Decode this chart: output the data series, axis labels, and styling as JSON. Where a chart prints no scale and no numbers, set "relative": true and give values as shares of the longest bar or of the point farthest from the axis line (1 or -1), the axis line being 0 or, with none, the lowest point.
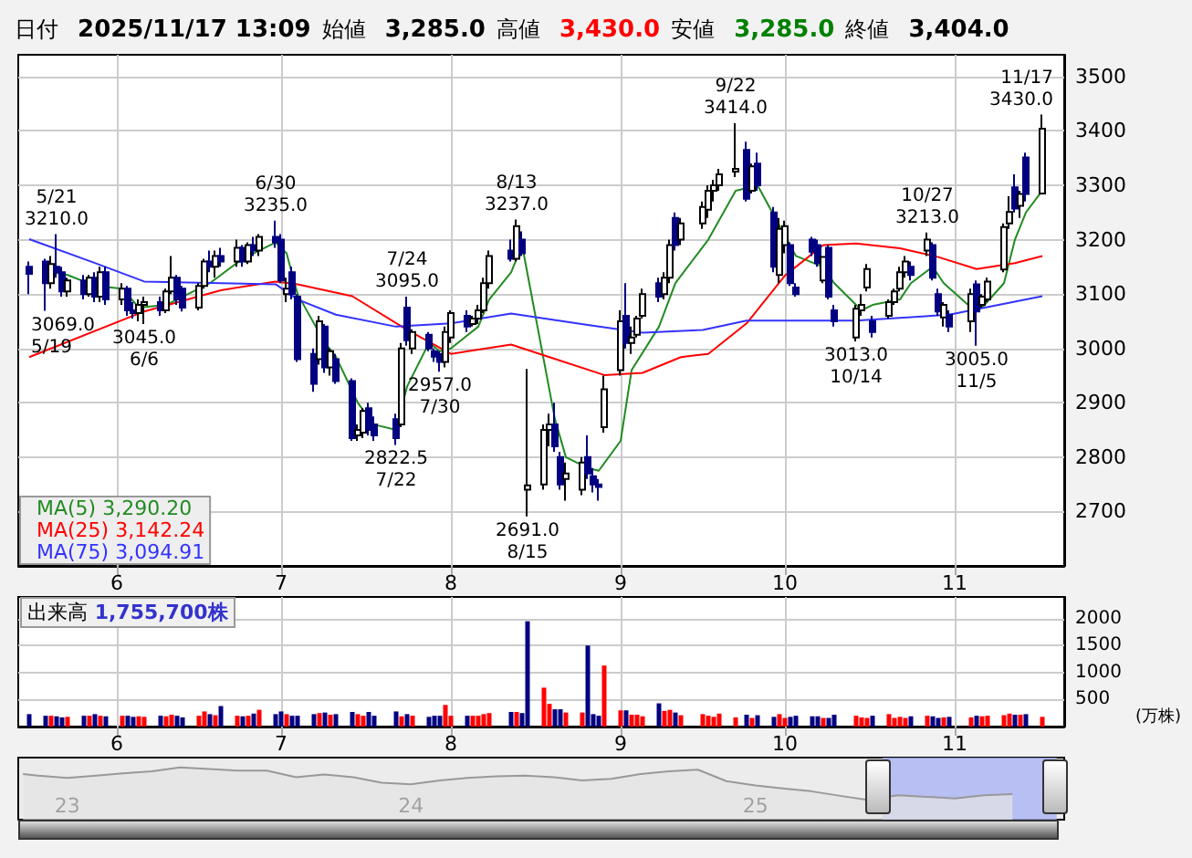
{
  "chart_data": [
    {
      "type": "candlestick",
      "annotations": [
        "日付 2025/11/17 13:09",
        "始値 3,285.0",
        "高値 3,430.0",
        "安値 3,285.0",
        "終値 3,404.0",
        {
          "text": "5/21\n3210.0",
          "x": "2025-05-21",
          "y": 3210
        },
        {
          "text": "3069.0\n5/19",
          "x": "2025-05-19",
          "y": 3069
        },
        {
          "text": "3045.0\n6/6",
          "x": "2025-06-06",
          "y": 3045
        },
        {
          "text": "6/30\n3235.0",
          "x": "2025-06-30",
          "y": 3235
        },
        {
          "text": "2822.5\n7/22",
          "x": "2025-07-22",
          "y": 2822.5
        },
        {
          "text": "7/24\n3095.0",
          "x": "2025-07-24",
          "y": 3095
        },
        {
          "text": "2957.0\n7/30",
          "x": "2025-07-30",
          "y": 2957
        },
        {
          "text": "8/13\n3237.0",
          "x": "2025-08-13",
          "y": 3237
        },
        {
          "text": "2691.0\n8/15",
          "x": "2025-08-15",
          "y": 2691
        },
        {
          "text": "9/22\n3414.0",
          "x": "2025-09-22",
          "y": 3414
        },
        {
          "text": "3013.0\n10/14",
          "x": "2025-10-14",
          "y": 3013
        },
        {
          "text": "10/27\n3213.0",
          "x": "2025-10-27",
          "y": 3213
        },
        {
          "text": "3005.0\n11/5",
          "x": "2025-11-05",
          "y": 3005
        },
        {
          "text": "11/17\n3430.0",
          "x": "2025-11-17",
          "y": 3430
        }
      ],
      "x": [
        "2025-05-16",
        "2025-05-19",
        "2025-05-20",
        "2025-05-21",
        "2025-05-22",
        "2025-05-23",
        "2025-05-26",
        "2025-05-27",
        "2025-05-28",
        "2025-05-29",
        "2025-05-30",
        "2025-06-02",
        "2025-06-03",
        "2025-06-04",
        "2025-06-05",
        "2025-06-06",
        "2025-06-09",
        "2025-06-10",
        "2025-06-11",
        "2025-06-12",
        "2025-06-13",
        "2025-06-16",
        "2025-06-17",
        "2025-06-18",
        "2025-06-19",
        "2025-06-20",
        "2025-06-23",
        "2025-06-24",
        "2025-06-25",
        "2025-06-26",
        "2025-06-27",
        "2025-06-30",
        "2025-07-01",
        "2025-07-02",
        "2025-07-03",
        "2025-07-04",
        "2025-07-07",
        "2025-07-08",
        "2025-07-09",
        "2025-07-10",
        "2025-07-11",
        "2025-07-14",
        "2025-07-15",
        "2025-07-16",
        "2025-07-17",
        "2025-07-18",
        "2025-07-22",
        "2025-07-23",
        "2025-07-24",
        "2025-07-25",
        "2025-07-28",
        "2025-07-29",
        "2025-07-30",
        "2025-07-31",
        "2025-08-01",
        "2025-08-04",
        "2025-08-05",
        "2025-08-06",
        "2025-08-07",
        "2025-08-08",
        "2025-08-12",
        "2025-08-13",
        "2025-08-14",
        "2025-08-15",
        "2025-08-18",
        "2025-08-19",
        "2025-08-20",
        "2025-08-21",
        "2025-08-22",
        "2025-08-25",
        "2025-08-26",
        "2025-08-27",
        "2025-08-28",
        "2025-08-29",
        "2025-09-01",
        "2025-09-02",
        "2025-09-03",
        "2025-09-04",
        "2025-09-05",
        "2025-09-08",
        "2025-09-09",
        "2025-09-10",
        "2025-09-11",
        "2025-09-12",
        "2025-09-16",
        "2025-09-17",
        "2025-09-18",
        "2025-09-19",
        "2025-09-22",
        "2025-09-24",
        "2025-09-25",
        "2025-09-26",
        "2025-09-29",
        "2025-09-30",
        "2025-10-01",
        "2025-10-02",
        "2025-10-03",
        "2025-10-06",
        "2025-10-07",
        "2025-10-08",
        "2025-10-09",
        "2025-10-10",
        "2025-10-14",
        "2025-10-15",
        "2025-10-16",
        "2025-10-17",
        "2025-10-20",
        "2025-10-21",
        "2025-10-22",
        "2025-10-23",
        "2025-10-24",
        "2025-10-27",
        "2025-10-28",
        "2025-10-29",
        "2025-10-30",
        "2025-10-31",
        "2025-11-04",
        "2025-11-05",
        "2025-11-06",
        "2025-11-07",
        "2025-11-10",
        "2025-11-11",
        "2025-11-12",
        "2025-11-13",
        "2025-11-14",
        "2025-11-17"
      ],
      "xlim": [
        "2025-05-14",
        "2025-11-21"
      ],
      "xticks": [
        {
          "value": "2025-06-01",
          "label": "6"
        },
        {
          "value": "2025-07-01",
          "label": "7"
        },
        {
          "value": "2025-08-01",
          "label": "8"
        },
        {
          "value": "2025-09-01",
          "label": "9"
        },
        {
          "value": "2025-10-01",
          "label": "10"
        },
        {
          "value": "2025-11-01",
          "label": "11"
        }
      ],
      "ylim": [
        2600,
        3540
      ],
      "yticks": [
        2700,
        2800,
        2900,
        3000,
        3100,
        3200,
        3300,
        3400,
        3500
      ],
      "grid": true,
      "legend": "bottom left",
      "series": [
        {
          "type": "candlestick",
          "colors": [
            "#000080",
            "#000080",
            "#ffffff",
            "#000080",
            "#000080",
            "#ffffff",
            "#000080",
            "#ffffff",
            "#000080",
            "#ffffff",
            "#000080",
            "#ffffff",
            "#000080",
            "#000080",
            "#ffffff",
            "#ffffff",
            "#000080",
            "#ffffff",
            "#ffffff",
            "#000080",
            "#000080",
            "#ffffff",
            "#ffffff",
            "#000080",
            "#ffffff",
            "#000080",
            "#ffffff",
            "#000080",
            "#ffffff",
            "#000080",
            "#ffffff",
            "#000080",
            "#000080",
            "#ffffff",
            "#000080",
            "#000080",
            "#000080",
            "#ffffff",
            "#000080",
            "#ffffff",
            "#000080",
            "#000080",
            "#ffffff",
            "#ffffff",
            "#000080",
            "#000080",
            "#000080",
            "#ffffff",
            "#000080",
            "#ffffff",
            "#000080",
            "#000080",
            "#000080",
            "#ffffff",
            "#ffffff",
            "#000080",
            "#ffffff",
            "#ffffff",
            "#ffffff",
            "#ffffff",
            "#000080",
            "#ffffff",
            "#000080",
            "#ffffff",
            "#ffffff",
            "#ffffff",
            "#000080",
            "#000080",
            "#ffffff",
            "#ffffff",
            "#000080",
            "#000080",
            "#000080",
            "#ffffff",
            "#ffffff",
            "#000080",
            "#ffffff",
            "#ffffff",
            "#ffffff",
            "#000080",
            "#ffffff",
            "#ffffff",
            "#000080",
            "#ffffff",
            "#ffffff",
            "#ffffff",
            "#ffffff",
            "#ffffff",
            "#ffffff",
            "#000080",
            "#ffffff",
            "#000080",
            "#000080",
            "#ffffff",
            "#ffffff",
            "#000080",
            "#000080",
            "#000080",
            "#000080",
            "#ffffff",
            "#000080",
            "#000080",
            "#ffffff",
            "#ffffff",
            "#ffffff",
            "#000080",
            "#ffffff",
            "#ffffff",
            "#ffffff",
            "#ffffff",
            "#000080",
            "#ffffff",
            "#000080",
            "#000080",
            "#ffffff",
            "#000080",
            "#ffffff",
            "#000080",
            "#ffffff",
            "#ffffff",
            "#ffffff",
            "#ffffff",
            "#000080",
            "#ffffff",
            "#000080",
            "#ffffff"
          ],
          "ohlc": [
            [
              3150,
              3160,
              3100,
              3137
            ],
            [
              3160,
              3165,
              3069,
              3120
            ],
            [
              3120,
              3170,
              3110,
              3155
            ],
            [
              3150,
              3210,
              3130,
              3140
            ],
            [
              3140,
              3150,
              3095,
              3105
            ],
            [
              3105,
              3130,
              3095,
              3125
            ],
            [
              3125,
              3135,
              3090,
              3100
            ],
            [
              3100,
              3135,
              3095,
              3130
            ],
            [
              3130,
              3140,
              3085,
              3095
            ],
            [
              3095,
              3150,
              3085,
              3140
            ],
            [
              3140,
              3150,
              3080,
              3090
            ],
            [
              3090,
              3120,
              3080,
              3110
            ],
            [
              3110,
              3115,
              3060,
              3070
            ],
            [
              3070,
              3085,
              3055,
              3065
            ],
            [
              3065,
              3090,
              3050,
              3080
            ],
            [
              3080,
              3095,
              3045,
              3085
            ],
            [
              3085,
              3095,
              3060,
              3070
            ],
            [
              3070,
              3110,
              3065,
              3105
            ],
            [
              3105,
              3170,
              3100,
              3130
            ],
            [
              3130,
              3135,
              3080,
              3090
            ],
            [
              3110,
              3115,
              3068,
              3075
            ],
            [
              3075,
              3120,
              3070,
              3115
            ],
            [
              3115,
              3165,
              3110,
              3160
            ],
            [
              3160,
              3180,
              3140,
              3150
            ],
            [
              3150,
              3180,
              3130,
              3170
            ],
            [
              3170,
              3185,
              3150,
              3160
            ],
            [
              3160,
              3200,
              3150,
              3185
            ],
            [
              3185,
              3190,
              3150,
              3160
            ],
            [
              3160,
              3195,
              3155,
              3190
            ],
            [
              3190,
              3205,
              3170,
              3180
            ],
            [
              3180,
              3210,
              3170,
              3205
            ],
            [
              3205,
              3235,
              3185,
              3195
            ],
            [
              3200,
              3210,
              3120,
              3125
            ],
            [
              3100,
              3130,
              3085,
              3110
            ],
            [
              3140,
              3150,
              3090,
              3100
            ],
            [
              3095,
              3100,
              2975,
              2980
            ],
            [
              2990,
              3000,
              2920,
              2935
            ],
            [
              2980,
              3060,
              2970,
              3050
            ],
            [
              3040,
              3045,
              2955,
              2965
            ],
            [
              2965,
              3000,
              2950,
              2995
            ],
            [
              2980,
              2990,
              2935,
              2940
            ],
            [
              2940,
              2945,
              2830,
              2835
            ],
            [
              2840,
              2860,
              2830,
              2850
            ],
            [
              2845,
              2890,
              2835,
              2885
            ],
            [
              2890,
              2900,
              2840,
              2850
            ],
            [
              2860,
              2875,
              2830,
              2840
            ],
            [
              2870,
              2880,
              2822.5,
              2835
            ],
            [
              2860,
              3010,
              2855,
              3000
            ],
            [
              3075,
              3095,
              3005,
              3015
            ],
            [
              3000,
              3035,
              2990,
              3030
            ],
            [
              3025,
              3030,
              2995,
              3000
            ],
            [
              2995,
              3000,
              2975,
              2985
            ],
            [
              2990,
              2995,
              2957,
              2975
            ],
            [
              2975,
              3040,
              2965,
              3030
            ],
            [
              3020,
              3070,
              3010,
              3065
            ],
            [
              3060,
              3070,
              3030,
              3040
            ],
            [
              3045,
              3060,
              3040,
              3055
            ],
            [
              3055,
              3080,
              3045,
              3070
            ],
            [
              3070,
              3130,
              3065,
              3120
            ],
            [
              3120,
              3180,
              3110,
              3170
            ],
            [
              3180,
              3200,
              3160,
              3165
            ],
            [
              3165,
              3237,
              3160,
              3225
            ],
            [
              3200,
              3215,
              3170,
              3175
            ],
            [
              2740,
              2962,
              2691,
              2748
            ],
            [
              2750,
              2860,
              2740,
              2850
            ],
            [
              2850,
              2880,
              2820,
              2860
            ],
            [
              2860,
              2900,
              2810,
              2820
            ],
            [
              2800,
              2810,
              2740,
              2750
            ],
            [
              2760,
              2790,
              2720,
              2770
            ],
            [
              2740,
              2800,
              2730,
              2790
            ],
            [
              2800,
              2840,
              2760,
              2770
            ],
            [
              2765,
              2780,
              2735,
              2750
            ],
            [
              2750,
              2760,
              2720,
              2745
            ],
            [
              2855,
              2950,
              2845,
              2925
            ],
            [
              2960,
              3070,
              2950,
              3050
            ],
            [
              3060,
              3120,
              3000,
              3010
            ],
            [
              3010,
              3040,
              2990,
              3020
            ],
            [
              3025,
              3060,
              3020,
              3055
            ],
            [
              3060,
              3110,
              3055,
              3100
            ],
            [
              3120,
              3130,
              3085,
              3095
            ],
            [
              3100,
              3140,
              3090,
              3130
            ],
            [
              3130,
              3200,
              3120,
              3190
            ],
            [
              3240,
              3250,
              3180,
              3190
            ],
            [
              3200,
              3240,
              3190,
              3230
            ],
            [
              3230,
              3270,
              3220,
              3260
            ],
            [
              3255,
              3300,
              3240,
              3290
            ],
            [
              3290,
              3310,
              3270,
              3300
            ],
            [
              3300,
              3330,
              3290,
              3320
            ],
            [
              3325,
              3414,
              3315,
              3330
            ],
            [
              3365,
              3380,
              3270,
              3275
            ],
            [
              3290,
              3340,
              3285,
              3335
            ],
            [
              3340,
              3360,
              3290,
              3300
            ],
            [
              3250,
              3260,
              3140,
              3150
            ],
            [
              3135,
              3240,
              3120,
              3220
            ],
            [
              3190,
              3235,
              3175,
              3225
            ],
            [
              3190,
              3195,
              3115,
              3120
            ],
            [
              3112,
              3120,
              3095,
              3100
            ],
            [
              3200,
              3205,
              3170,
              3178
            ],
            [
              3190,
              3200,
              3150,
              3157
            ],
            [
              3125,
              3170,
              3120,
              3168
            ],
            [
              3185,
              3190,
              3090,
              3095
            ],
            [
              3070,
              3080,
              3040,
              3050
            ],
            [
              3020,
              3080,
              3013,
              3073
            ],
            [
              3070,
              3100,
              3060,
              3080
            ],
            [
              3112,
              3155,
              3105,
              3146
            ],
            [
              3050,
              3060,
              3020,
              3030
            ],
            [
              3060,
              3090,
              3055,
              3085
            ],
            [
              3085,
              3110,
              3080,
              3105
            ],
            [
              3110,
              3150,
              3105,
              3140
            ],
            [
              3140,
              3170,
              3130,
              3160
            ],
            [
              3150,
              3160,
              3125,
              3135
            ],
            [
              3180,
              3213,
              3170,
              3200
            ],
            [
              3190,
              3195,
              3125,
              3130
            ],
            [
              3100,
              3110,
              3060,
              3068
            ],
            [
              3057,
              3085,
              3040,
              3080
            ],
            [
              3062,
              3070,
              3030,
              3040
            ],
            [
              3050,
              3110,
              3030,
              3100
            ],
            [
              3118,
              3125,
              3005,
              3068
            ],
            [
              3080,
              3100,
              3075,
              3095
            ],
            [
              3090,
              3130,
              3085,
              3123
            ],
            [
              3145,
              3230,
              3140,
              3223
            ],
            [
              3230,
              3280,
              3220,
              3251
            ],
            [
              3296,
              3320,
              3250,
              3257
            ],
            [
              3262,
              3290,
              3240,
              3284
            ],
            [
              3351,
              3360,
              3270,
              3284
            ],
            [
              3285,
              3430,
              3285,
              3404
            ]
          ]
        },
        {
          "type": "line",
          "name": "MA(5) 3,290.20",
          "color": "#228b22",
          "x": [
            "2025-05-20",
            "2025-05-23",
            "2025-05-28",
            "2025-06-02",
            "2025-06-05",
            "2025-06-10",
            "2025-06-13",
            "2025-06-18",
            "2025-06-24",
            "2025-06-30",
            "2025-07-02",
            "2025-07-04",
            "2025-07-09",
            "2025-07-11",
            "2025-07-15",
            "2025-07-18",
            "2025-07-22",
            "2025-07-24",
            "2025-07-28",
            "2025-07-30",
            "2025-08-01",
            "2025-08-06",
            "2025-08-08",
            "2025-08-12",
            "2025-08-14",
            "2025-08-20",
            "2025-08-22",
            "2025-08-26",
            "2025-08-28",
            "2025-09-01",
            "2025-09-03",
            "2025-09-08",
            "2025-09-11",
            "2025-09-17",
            "2025-09-22",
            "2025-09-26",
            "2025-10-03",
            "2025-10-08",
            "2025-10-10",
            "2025-10-15",
            "2025-10-17",
            "2025-10-22",
            "2025-10-24",
            "2025-10-28",
            "2025-10-30",
            "2025-11-04",
            "2025-11-06",
            "2025-11-10",
            "2025-11-12",
            "2025-11-14",
            "2025-11-17"
          ],
          "values": [
            3140,
            3135,
            3115,
            3110,
            3075,
            3080,
            3095,
            3120,
            3165,
            3195,
            3175,
            3100,
            3010,
            2985,
            2900,
            2860,
            2850,
            2930,
            3010,
            2995,
            3000,
            3040,
            3090,
            3140,
            3190,
            2870,
            2800,
            2780,
            2775,
            2830,
            2960,
            3040,
            3120,
            3200,
            3290,
            3300,
            3170,
            3150,
            3120,
            3070,
            3080,
            3090,
            3120,
            3150,
            3120,
            3075,
            3075,
            3120,
            3200,
            3250,
            3290
          ]
        },
        {
          "type": "line",
          "name": "MA(25) 3,142.24",
          "color": "#ff0000",
          "x": [
            "2025-05-16",
            "2025-06-06",
            "2025-06-20",
            "2025-06-30",
            "2025-07-04",
            "2025-07-14",
            "2025-07-24",
            "2025-08-01",
            "2025-08-12",
            "2025-08-19",
            "2025-08-29",
            "2025-09-05",
            "2025-09-12",
            "2025-09-17",
            "2025-09-24",
            "2025-10-01",
            "2025-10-08",
            "2025-10-14",
            "2025-10-22",
            "2025-10-29",
            "2025-11-05",
            "2025-11-12",
            "2025-11-17"
          ],
          "values": [
            2984,
            3068,
            3107,
            3123,
            3118,
            3096,
            3034,
            2990,
            3007,
            2984,
            2951,
            2955,
            2984,
            2990,
            3046,
            3134,
            3190,
            3193,
            3184,
            3168,
            3146,
            3157,
            3170
          ]
        },
        {
          "type": "line",
          "name": "MA(75) 3,094.91",
          "color": "#3333ff",
          "x": [
            "2025-05-16",
            "2025-05-28",
            "2025-06-06",
            "2025-06-20",
            "2025-06-30",
            "2025-07-04",
            "2025-07-11",
            "2025-07-22",
            "2025-08-01",
            "2025-08-12",
            "2025-08-26",
            "2025-09-05",
            "2025-09-16",
            "2025-09-24",
            "2025-10-14",
            "2025-10-31",
            "2025-11-17"
          ],
          "values": [
            3201,
            3157,
            3123,
            3120,
            3118,
            3090,
            3062,
            3040,
            3046,
            3064,
            3043,
            3029,
            3034,
            3051,
            3051,
            3062,
            3096
          ]
        }
      ]
    },
    {
      "type": "bar",
      "annotations": [
        "出来高 1,755,700株"
      ],
      "ylabel": "(万株)",
      "x": [
        "2025-05-16",
        "2025-05-19",
        "2025-05-20",
        "2025-05-21",
        "2025-05-22",
        "2025-05-23",
        "2025-05-26",
        "2025-05-27",
        "2025-05-28",
        "2025-05-29",
        "2025-05-30",
        "2025-06-02",
        "2025-06-03",
        "2025-06-04",
        "2025-06-05",
        "2025-06-06",
        "2025-06-09",
        "2025-06-10",
        "2025-06-11",
        "2025-06-12",
        "2025-06-13",
        "2025-06-16",
        "2025-06-17",
        "2025-06-18",
        "2025-06-19",
        "2025-06-20",
        "2025-06-23",
        "2025-06-24",
        "2025-06-25",
        "2025-06-26",
        "2025-06-27",
        "2025-06-30",
        "2025-07-01",
        "2025-07-02",
        "2025-07-03",
        "2025-07-04",
        "2025-07-07",
        "2025-07-08",
        "2025-07-09",
        "2025-07-10",
        "2025-07-11",
        "2025-07-14",
        "2025-07-15",
        "2025-07-16",
        "2025-07-17",
        "2025-07-18",
        "2025-07-22",
        "2025-07-23",
        "2025-07-24",
        "2025-07-25",
        "2025-07-28",
        "2025-07-29",
        "2025-07-30",
        "2025-07-31",
        "2025-08-01",
        "2025-08-04",
        "2025-08-05",
        "2025-08-06",
        "2025-08-07",
        "2025-08-08",
        "2025-08-12",
        "2025-08-13",
        "2025-08-14",
        "2025-08-15",
        "2025-08-18",
        "2025-08-19",
        "2025-08-20",
        "2025-08-21",
        "2025-08-22",
        "2025-08-25",
        "2025-08-26",
        "2025-08-27",
        "2025-08-28",
        "2025-08-29",
        "2025-09-01",
        "2025-09-02",
        "2025-09-03",
        "2025-09-04",
        "2025-09-05",
        "2025-09-08",
        "2025-09-09",
        "2025-09-10",
        "2025-09-11",
        "2025-09-12",
        "2025-09-16",
        "2025-09-17",
        "2025-09-18",
        "2025-09-19",
        "2025-09-22",
        "2025-09-24",
        "2025-09-25",
        "2025-09-26",
        "2025-09-29",
        "2025-09-30",
        "2025-10-01",
        "2025-10-02",
        "2025-10-03",
        "2025-10-06",
        "2025-10-07",
        "2025-10-08",
        "2025-10-09",
        "2025-10-10",
        "2025-10-14",
        "2025-10-15",
        "2025-10-16",
        "2025-10-17",
        "2025-10-20",
        "2025-10-21",
        "2025-10-22",
        "2025-10-23",
        "2025-10-24",
        "2025-10-27",
        "2025-10-28",
        "2025-10-29",
        "2025-10-30",
        "2025-10-31",
        "2025-11-04",
        "2025-11-05",
        "2025-11-06",
        "2025-11-07",
        "2025-11-10",
        "2025-11-11",
        "2025-11-12",
        "2025-11-13",
        "2025-11-14",
        "2025-11-17"
      ],
      "xlim": [
        "2025-05-14",
        "2025-11-21"
      ],
      "xticks": [
        {
          "value": "2025-06-01",
          "label": "6"
        },
        {
          "value": "2025-07-01",
          "label": "7"
        },
        {
          "value": "2025-08-01",
          "label": "8"
        },
        {
          "value": "2025-09-01",
          "label": "9"
        },
        {
          "value": "2025-10-01",
          "label": "10"
        },
        {
          "value": "2025-11-01",
          "label": "11"
        }
      ],
      "ylim": [
        0,
        2400
      ],
      "yticks": [
        500,
        1000,
        1500,
        2000
      ],
      "grid": true,
      "values": [
        230,
        200,
        200,
        190,
        170,
        180,
        200,
        200,
        230,
        200,
        190,
        200,
        200,
        180,
        190,
        180,
        200,
        190,
        220,
        200,
        170,
        200,
        280,
        230,
        210,
        380,
        200,
        190,
        200,
        240,
        310,
        230,
        280,
        230,
        200,
        200,
        230,
        250,
        260,
        220,
        230,
        270,
        230,
        200,
        270,
        200,
        280,
        190,
        230,
        200,
        180,
        200,
        200,
        400,
        200,
        200,
        200,
        200,
        230,
        250,
        270,
        270,
        250,
        1950,
        720,
        420,
        320,
        320,
        260,
        260,
        1500,
        230,
        200,
        1130,
        300,
        300,
        220,
        220,
        190,
        430,
        290,
        310,
        260,
        210,
        230,
        200,
        180,
        240,
        170,
        220,
        160,
        210,
        180,
        230,
        160,
        180,
        200,
        190,
        190,
        160,
        160,
        220,
        200,
        170,
        160,
        200,
        230,
        160,
        180,
        160,
        190,
        200,
        190,
        160,
        170,
        180,
        170,
        200,
        190,
        200,
        210,
        240,
        220,
        220,
        230,
        180
      ],
      "colors": [
        "#000080",
        "#000080",
        "#ff0000",
        "#000080",
        "#000080",
        "#ff0000",
        "#000080",
        "#ff0000",
        "#000080",
        "#ff0000",
        "#000080",
        "#ff0000",
        "#000080",
        "#000080",
        "#ff0000",
        "#ff0000",
        "#000080",
        "#ff0000",
        "#ff0000",
        "#000080",
        "#000080",
        "#ff0000",
        "#ff0000",
        "#000080",
        "#ff0000",
        "#000080",
        "#ff0000",
        "#000080",
        "#ff0000",
        "#000080",
        "#ff0000",
        "#000080",
        "#000080",
        "#ff0000",
        "#000080",
        "#000080",
        "#000080",
        "#ff0000",
        "#000080",
        "#ff0000",
        "#000080",
        "#000080",
        "#ff0000",
        "#ff0000",
        "#000080",
        "#000080",
        "#000080",
        "#ff0000",
        "#000080",
        "#ff0000",
        "#000080",
        "#000080",
        "#000080",
        "#ff0000",
        "#ff0000",
        "#000080",
        "#ff0000",
        "#ff0000",
        "#ff0000",
        "#ff0000",
        "#000080",
        "#ff0000",
        "#000080",
        "#000080",
        "#ff0000",
        "#ff0000",
        "#000080",
        "#000080",
        "#ff0000",
        "#ff0000",
        "#000080",
        "#000080",
        "#000080",
        "#ff0000",
        "#ff0000",
        "#000080",
        "#ff0000",
        "#ff0000",
        "#ff0000",
        "#000080",
        "#ff0000",
        "#ff0000",
        "#000080",
        "#ff0000",
        "#ff0000",
        "#ff0000",
        "#ff0000",
        "#ff0000",
        "#ff0000",
        "#000080",
        "#ff0000",
        "#000080",
        "#000080",
        "#ff0000",
        "#ff0000",
        "#000080",
        "#000080",
        "#000080",
        "#000080",
        "#ff0000",
        "#000080",
        "#000080",
        "#ff0000",
        "#ff0000",
        "#ff0000",
        "#000080",
        "#ff0000",
        "#ff0000",
        "#ff0000",
        "#ff0000",
        "#000080",
        "#ff0000",
        "#000080",
        "#000080",
        "#ff0000",
        "#000080",
        "#ff0000",
        "#000080",
        "#ff0000",
        "#ff0000",
        "#ff0000",
        "#ff0000",
        "#000080",
        "#ff0000",
        "#000080",
        "#ff0000"
      ]
    },
    {
      "type": "area",
      "relative": true,
      "tick_labels": "x",
      "color": "#999999",
      "x": [
        "2022-11-15",
        "2022-12-01",
        "2023-01-01",
        "2023-02-01",
        "2023-03-01",
        "2023-04-01",
        "2023-05-01",
        "2023-06-01",
        "2023-07-01",
        "2023-08-01",
        "2023-09-01",
        "2023-10-01",
        "2023-11-01",
        "2023-12-01",
        "2024-01-01",
        "2024-02-01",
        "2024-03-01",
        "2024-04-01",
        "2024-05-01",
        "2024-06-01",
        "2024-07-01",
        "2024-08-01",
        "2024-09-01",
        "2024-10-01",
        "2024-11-01",
        "2024-12-01",
        "2025-01-01",
        "2025-02-01",
        "2025-03-01",
        "2025-04-01",
        "2025-05-01",
        "2025-06-01",
        "2025-07-01",
        "2025-08-01",
        "2025-09-01",
        "2025-10-01"
      ],
      "values": [
        0.8,
        0.75,
        0.68,
        0.75,
        0.82,
        0.88,
        1,
        0.95,
        0.9,
        0.9,
        0.7,
        0.78,
        0.7,
        0.53,
        0.48,
        0.6,
        0.68,
        0.73,
        0.75,
        0.7,
        0.6,
        0.65,
        0.8,
        0.88,
        0.93,
        0.58,
        0.45,
        0.35,
        0.27,
        0.13,
        0,
        0.15,
        0.1,
        0.05,
        0.15,
        0.18
      ],
      "xlim": [
        "2022-11-10",
        "2025-11-25"
      ],
      "xticks": [
        {
          "value": "2023-01-01",
          "label": "23"
        },
        {
          "value": "2024-01-01",
          "label": "24"
        },
        {
          "value": "2025-01-01",
          "label": "25"
        }
      ],
      "bands": [
        {
          "axis": "x",
          "from": "2025-05-16",
          "to": "2025-11-17",
          "color": "#aab4f5"
        }
      ]
    }
  ]
}
